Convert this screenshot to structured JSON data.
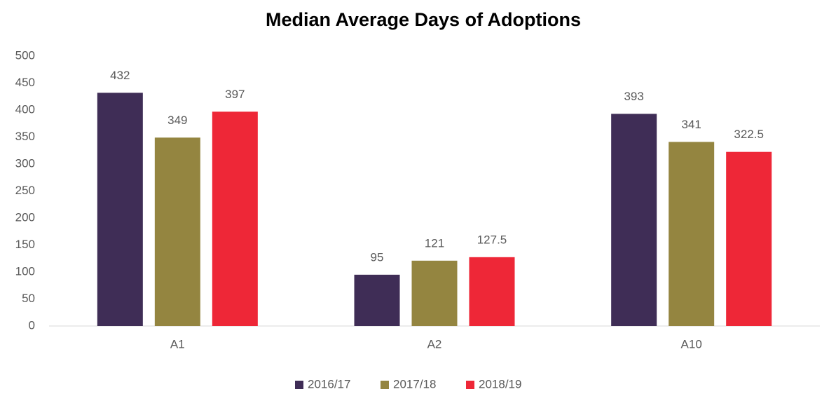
{
  "chart_data": {
    "type": "bar",
    "title": "Median Average Days of Adoptions",
    "categories": [
      "A1",
      "A2",
      "A10"
    ],
    "series": [
      {
        "name": "2016/17",
        "color": "#3f2d56",
        "values": [
          432,
          95,
          393
        ]
      },
      {
        "name": "2017/18",
        "color": "#948540",
        "values": [
          349,
          121,
          341
        ]
      },
      {
        "name": "2018/19",
        "color": "#ee2737",
        "values": [
          397,
          127.5,
          322.5
        ]
      }
    ],
    "ylim": [
      0,
      500
    ],
    "yticks": [
      0,
      50,
      100,
      150,
      200,
      250,
      300,
      350,
      400,
      450,
      500
    ],
    "grid": false,
    "legend": "bottom"
  }
}
